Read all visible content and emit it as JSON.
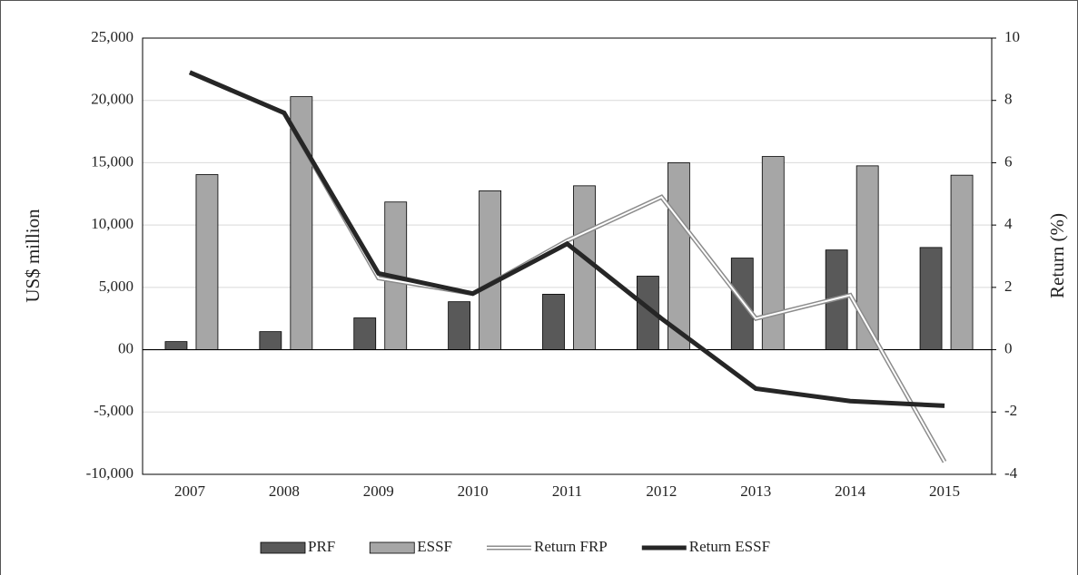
{
  "chart_data": {
    "type": "combo",
    "y_label": "US$ million",
    "y2_label": "Return (%)",
    "categories": [
      "2007",
      "2008",
      "2009",
      "2010",
      "2011",
      "2012",
      "2013",
      "2014",
      "2015"
    ],
    "series": [
      {
        "name": "PRF",
        "type": "bar",
        "color": "#595959",
        "values": [
          650,
          1450,
          2550,
          3850,
          4450,
          5900,
          7350,
          8000,
          8200
        ]
      },
      {
        "name": "ESSF",
        "type": "bar",
        "color": "#a6a6a6",
        "values": [
          14050,
          20300,
          11850,
          12750,
          13150,
          15000,
          15500,
          14750,
          14000
        ]
      },
      {
        "name": "Return FRP",
        "type": "line",
        "style": "double",
        "color": "#8c8c8c",
        "axis": "y2",
        "values": [
          8.9,
          7.6,
          2.3,
          1.8,
          3.5,
          4.9,
          1.0,
          1.75,
          -3.6
        ]
      },
      {
        "name": "Return ESSF",
        "type": "line",
        "style": "solid",
        "color": "#262626",
        "axis": "y2",
        "values": [
          8.9,
          7.6,
          2.45,
          1.8,
          3.4,
          1.0,
          -1.25,
          -1.65,
          -1.8
        ]
      }
    ],
    "ylim": [
      -10000,
      25000
    ],
    "yticks": [
      {
        "value": -10000,
        "label": "-10,000"
      },
      {
        "value": -5000,
        "label": "-5,000"
      },
      {
        "value": 0,
        "label": "00"
      },
      {
        "value": 5000,
        "label": "5,000"
      },
      {
        "value": 10000,
        "label": "10,000"
      },
      {
        "value": 15000,
        "label": "15,000"
      },
      {
        "value": 20000,
        "label": "20,000"
      },
      {
        "value": 25000,
        "label": "25,000"
      }
    ],
    "y2lim": [
      -4,
      10
    ],
    "y2ticks": [
      -4,
      -2,
      0,
      2,
      4,
      6,
      8,
      10
    ],
    "grid": true,
    "legend": "bottom"
  }
}
